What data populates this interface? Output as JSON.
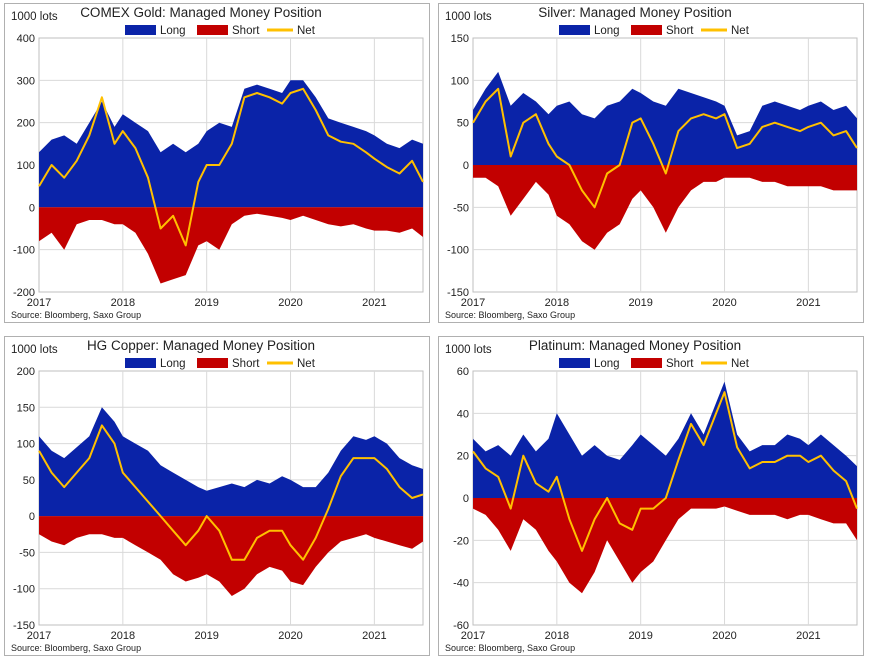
{
  "colors": {
    "long": "#0a23a8",
    "short": "#c20000",
    "net": "#ffc000",
    "grid": "#d9d9d9"
  },
  "charts": [
    {
      "title": "COMEX Gold: Managed Money Position",
      "unit": "1000 lots",
      "source": "Source:  Bloomberg,  Saxo Group",
      "legend": [
        "Long",
        "Short",
        "Net"
      ],
      "yticks": [
        "400",
        "300",
        "200",
        "100",
        "0",
        "-100",
        "-200"
      ],
      "xticks": [
        "2017",
        "2018",
        "2019",
        "2020",
        "2021"
      ]
    },
    {
      "title": "Silver: Managed Money Position",
      "unit": "1000 lots",
      "source": "Source:  Bloomberg,  Saxo Group",
      "legend": [
        "Long",
        "Short",
        "Net"
      ],
      "yticks": [
        "150",
        "100",
        "50",
        "0",
        "-50",
        "-100",
        "-150"
      ],
      "xticks": [
        "2017",
        "2018",
        "2019",
        "2020",
        "2021"
      ]
    },
    {
      "title": "HG Copper: Managed Money Position",
      "unit": "1000 lots",
      "source": "Source:  Bloomberg,  Saxo Group",
      "legend": [
        "Long",
        "Short",
        "Net"
      ],
      "yticks": [
        "200",
        "150",
        "100",
        "50",
        "0",
        "-50",
        "-100",
        "-150"
      ],
      "xticks": [
        "2017",
        "2018",
        "2019",
        "2020",
        "2021"
      ]
    },
    {
      "title": "Platinum: Managed Money Position",
      "unit": "1000 lots",
      "source": "Source:  Bloomberg,  Saxo Group",
      "legend": [
        "Long",
        "Short",
        "Net"
      ],
      "yticks": [
        "60",
        "40",
        "20",
        "0",
        "-20",
        "-40",
        "-60"
      ],
      "xticks": [
        "2017",
        "2018",
        "2019",
        "2020",
        "2021"
      ]
    }
  ],
  "chart_data": [
    {
      "type": "area",
      "title": "COMEX Gold: Managed Money Position",
      "ylabel": "1000 lots",
      "ylim": [
        -200,
        400
      ],
      "xlim": [
        2017.0,
        2021.58
      ],
      "grid": true,
      "legend_position": "top",
      "series": [
        {
          "name": "Long",
          "x": [
            2017.0,
            2017.15,
            2017.3,
            2017.45,
            2017.6,
            2017.75,
            2017.9,
            2018.0,
            2018.15,
            2018.3,
            2018.45,
            2018.6,
            2018.75,
            2018.9,
            2019.0,
            2019.15,
            2019.3,
            2019.45,
            2019.6,
            2019.75,
            2019.9,
            2020.0,
            2020.15,
            2020.3,
            2020.45,
            2020.6,
            2020.75,
            2020.9,
            2021.0,
            2021.15,
            2021.3,
            2021.45,
            2021.58
          ],
          "values": [
            130,
            160,
            170,
            150,
            200,
            250,
            190,
            220,
            200,
            180,
            130,
            150,
            130,
            150,
            180,
            200,
            190,
            280,
            290,
            280,
            270,
            300,
            300,
            260,
            210,
            200,
            190,
            180,
            170,
            150,
            140,
            160,
            150
          ]
        },
        {
          "name": "Short",
          "x": [
            2017.0,
            2017.15,
            2017.3,
            2017.45,
            2017.6,
            2017.75,
            2017.9,
            2018.0,
            2018.15,
            2018.3,
            2018.45,
            2018.6,
            2018.75,
            2018.9,
            2019.0,
            2019.15,
            2019.3,
            2019.45,
            2019.6,
            2019.75,
            2019.9,
            2020.0,
            2020.15,
            2020.3,
            2020.45,
            2020.6,
            2020.75,
            2020.9,
            2021.0,
            2021.15,
            2021.3,
            2021.45,
            2021.58
          ],
          "values": [
            -80,
            -60,
            -100,
            -40,
            -30,
            -30,
            -40,
            -40,
            -60,
            -110,
            -180,
            -170,
            -160,
            -90,
            -80,
            -100,
            -40,
            -20,
            -15,
            -20,
            -25,
            -30,
            -20,
            -30,
            -40,
            -45,
            -40,
            -50,
            -55,
            -55,
            -60,
            -50,
            -70
          ]
        },
        {
          "name": "Net",
          "x": [
            2017.0,
            2017.15,
            2017.3,
            2017.45,
            2017.6,
            2017.75,
            2017.9,
            2018.0,
            2018.15,
            2018.3,
            2018.45,
            2018.6,
            2018.75,
            2018.9,
            2019.0,
            2019.15,
            2019.3,
            2019.45,
            2019.6,
            2019.75,
            2019.9,
            2020.0,
            2020.15,
            2020.3,
            2020.45,
            2020.6,
            2020.75,
            2020.9,
            2021.0,
            2021.15,
            2021.3,
            2021.45,
            2021.58
          ],
          "values": [
            50,
            100,
            70,
            110,
            170,
            260,
            150,
            180,
            140,
            70,
            -50,
            -20,
            -90,
            60,
            100,
            100,
            150,
            260,
            270,
            260,
            245,
            270,
            280,
            230,
            170,
            155,
            150,
            130,
            115,
            95,
            80,
            110,
            60
          ]
        }
      ]
    },
    {
      "type": "area",
      "title": "Silver: Managed Money Position",
      "ylabel": "1000 lots",
      "ylim": [
        -150,
        150
      ],
      "xlim": [
        2017.0,
        2021.58
      ],
      "grid": true,
      "legend_position": "top",
      "series": [
        {
          "name": "Long",
          "x": [
            2017.0,
            2017.15,
            2017.3,
            2017.45,
            2017.6,
            2017.75,
            2017.9,
            2018.0,
            2018.15,
            2018.3,
            2018.45,
            2018.6,
            2018.75,
            2018.9,
            2019.0,
            2019.15,
            2019.3,
            2019.45,
            2019.6,
            2019.75,
            2019.9,
            2020.0,
            2020.15,
            2020.3,
            2020.45,
            2020.6,
            2020.75,
            2020.9,
            2021.0,
            2021.15,
            2021.3,
            2021.45,
            2021.58
          ],
          "values": [
            65,
            90,
            110,
            70,
            85,
            75,
            60,
            70,
            75,
            60,
            55,
            70,
            75,
            90,
            85,
            75,
            70,
            90,
            85,
            80,
            75,
            70,
            35,
            40,
            70,
            75,
            70,
            65,
            70,
            75,
            65,
            70,
            55
          ]
        },
        {
          "name": "Short",
          "x": [
            2017.0,
            2017.15,
            2017.3,
            2017.45,
            2017.6,
            2017.75,
            2017.9,
            2018.0,
            2018.15,
            2018.3,
            2018.45,
            2018.6,
            2018.75,
            2018.9,
            2019.0,
            2019.15,
            2019.3,
            2019.45,
            2019.6,
            2019.75,
            2019.9,
            2020.0,
            2020.15,
            2020.3,
            2020.45,
            2020.6,
            2020.75,
            2020.9,
            2021.0,
            2021.15,
            2021.3,
            2021.45,
            2021.58
          ],
          "values": [
            -15,
            -15,
            -25,
            -60,
            -40,
            -20,
            -35,
            -60,
            -70,
            -90,
            -100,
            -80,
            -70,
            -40,
            -30,
            -50,
            -80,
            -50,
            -30,
            -20,
            -20,
            -15,
            -15,
            -15,
            -20,
            -20,
            -25,
            -25,
            -25,
            -25,
            -30,
            -30,
            -30
          ]
        },
        {
          "name": "Net",
          "x": [
            2017.0,
            2017.15,
            2017.3,
            2017.45,
            2017.6,
            2017.75,
            2017.9,
            2018.0,
            2018.15,
            2018.3,
            2018.45,
            2018.6,
            2018.75,
            2018.9,
            2019.0,
            2019.15,
            2019.3,
            2019.45,
            2019.6,
            2019.75,
            2019.9,
            2020.0,
            2020.15,
            2020.3,
            2020.45,
            2020.6,
            2020.75,
            2020.9,
            2021.0,
            2021.15,
            2021.3,
            2021.45,
            2021.58
          ],
          "values": [
            50,
            75,
            90,
            10,
            50,
            60,
            25,
            10,
            0,
            -30,
            -50,
            -10,
            0,
            50,
            55,
            25,
            -10,
            40,
            55,
            60,
            55,
            60,
            20,
            25,
            45,
            50,
            45,
            40,
            45,
            50,
            35,
            40,
            20
          ]
        }
      ]
    },
    {
      "type": "area",
      "title": "HG Copper: Managed Money Position",
      "ylabel": "1000 lots",
      "ylim": [
        -150,
        200
      ],
      "xlim": [
        2017.0,
        2021.58
      ],
      "grid": true,
      "legend_position": "top",
      "series": [
        {
          "name": "Long",
          "x": [
            2017.0,
            2017.15,
            2017.3,
            2017.45,
            2017.6,
            2017.75,
            2017.9,
            2018.0,
            2018.15,
            2018.3,
            2018.45,
            2018.6,
            2018.75,
            2018.9,
            2019.0,
            2019.15,
            2019.3,
            2019.45,
            2019.6,
            2019.75,
            2019.9,
            2020.0,
            2020.15,
            2020.3,
            2020.45,
            2020.6,
            2020.75,
            2020.9,
            2021.0,
            2021.15,
            2021.3,
            2021.45,
            2021.58
          ],
          "values": [
            110,
            90,
            80,
            95,
            110,
            150,
            130,
            110,
            100,
            90,
            70,
            60,
            50,
            40,
            35,
            40,
            45,
            40,
            50,
            45,
            55,
            50,
            40,
            40,
            60,
            90,
            110,
            105,
            110,
            100,
            80,
            70,
            65
          ]
        },
        {
          "name": "Short",
          "x": [
            2017.0,
            2017.15,
            2017.3,
            2017.45,
            2017.6,
            2017.75,
            2017.9,
            2018.0,
            2018.15,
            2018.3,
            2018.45,
            2018.6,
            2018.75,
            2018.9,
            2019.0,
            2019.15,
            2019.3,
            2019.45,
            2019.6,
            2019.75,
            2019.9,
            2020.0,
            2020.15,
            2020.3,
            2020.45,
            2020.6,
            2020.75,
            2020.9,
            2021.0,
            2021.15,
            2021.3,
            2021.45,
            2021.58
          ],
          "values": [
            -25,
            -35,
            -40,
            -30,
            -25,
            -25,
            -30,
            -30,
            -40,
            -50,
            -60,
            -80,
            -90,
            -85,
            -80,
            -90,
            -110,
            -100,
            -80,
            -70,
            -75,
            -90,
            -95,
            -70,
            -50,
            -35,
            -30,
            -25,
            -30,
            -35,
            -40,
            -45,
            -35
          ]
        },
        {
          "name": "Net",
          "x": [
            2017.0,
            2017.15,
            2017.3,
            2017.45,
            2017.6,
            2017.75,
            2017.9,
            2018.0,
            2018.15,
            2018.3,
            2018.45,
            2018.6,
            2018.75,
            2018.9,
            2019.0,
            2019.15,
            2019.3,
            2019.45,
            2019.6,
            2019.75,
            2019.9,
            2020.0,
            2020.15,
            2020.3,
            2020.45,
            2020.6,
            2020.75,
            2020.9,
            2021.0,
            2021.15,
            2021.3,
            2021.45,
            2021.58
          ],
          "values": [
            90,
            60,
            40,
            60,
            80,
            125,
            100,
            60,
            40,
            20,
            0,
            -20,
            -40,
            -20,
            0,
            -20,
            -60,
            -60,
            -30,
            -20,
            -20,
            -40,
            -60,
            -30,
            10,
            55,
            80,
            80,
            80,
            65,
            40,
            25,
            30
          ]
        }
      ]
    },
    {
      "type": "area",
      "title": "Platinum: Managed Money Position",
      "ylabel": "1000 lots",
      "ylim": [
        -60,
        60
      ],
      "xlim": [
        2017.0,
        2021.58
      ],
      "grid": true,
      "legend_position": "top",
      "series": [
        {
          "name": "Long",
          "x": [
            2017.0,
            2017.15,
            2017.3,
            2017.45,
            2017.6,
            2017.75,
            2017.9,
            2018.0,
            2018.15,
            2018.3,
            2018.45,
            2018.6,
            2018.75,
            2018.9,
            2019.0,
            2019.15,
            2019.3,
            2019.45,
            2019.6,
            2019.75,
            2019.9,
            2020.0,
            2020.15,
            2020.3,
            2020.45,
            2020.6,
            2020.75,
            2020.9,
            2021.0,
            2021.15,
            2021.3,
            2021.45,
            2021.58
          ],
          "values": [
            28,
            22,
            25,
            20,
            30,
            22,
            28,
            40,
            30,
            20,
            25,
            20,
            18,
            25,
            30,
            25,
            20,
            28,
            40,
            30,
            45,
            55,
            30,
            22,
            25,
            25,
            30,
            28,
            25,
            30,
            25,
            20,
            15
          ]
        },
        {
          "name": "Short",
          "x": [
            2017.0,
            2017.15,
            2017.3,
            2017.45,
            2017.6,
            2017.75,
            2017.9,
            2018.0,
            2018.15,
            2018.3,
            2018.45,
            2018.6,
            2018.75,
            2018.9,
            2019.0,
            2019.15,
            2019.3,
            2019.45,
            2019.6,
            2019.75,
            2019.9,
            2020.0,
            2020.15,
            2020.3,
            2020.45,
            2020.6,
            2020.75,
            2020.9,
            2021.0,
            2021.15,
            2021.3,
            2021.45,
            2021.58
          ],
          "values": [
            -5,
            -8,
            -15,
            -25,
            -10,
            -15,
            -25,
            -30,
            -40,
            -45,
            -35,
            -20,
            -30,
            -40,
            -35,
            -30,
            -20,
            -10,
            -5,
            -5,
            -5,
            -4,
            -6,
            -8,
            -8,
            -8,
            -10,
            -8,
            -8,
            -10,
            -12,
            -12,
            -20
          ]
        },
        {
          "name": "Net",
          "x": [
            2017.0,
            2017.15,
            2017.3,
            2017.45,
            2017.6,
            2017.75,
            2017.9,
            2018.0,
            2018.15,
            2018.3,
            2018.45,
            2018.6,
            2018.75,
            2018.9,
            2019.0,
            2019.15,
            2019.3,
            2019.45,
            2019.6,
            2019.75,
            2019.9,
            2020.0,
            2020.15,
            2020.3,
            2020.45,
            2020.6,
            2020.75,
            2020.9,
            2021.0,
            2021.15,
            2021.3,
            2021.45,
            2021.58
          ],
          "values": [
            22,
            14,
            10,
            -5,
            20,
            7,
            3,
            10,
            -10,
            -25,
            -10,
            0,
            -12,
            -15,
            -5,
            -5,
            0,
            18,
            35,
            25,
            40,
            50,
            24,
            14,
            17,
            17,
            20,
            20,
            17,
            20,
            13,
            8,
            -5
          ]
        }
      ]
    }
  ]
}
